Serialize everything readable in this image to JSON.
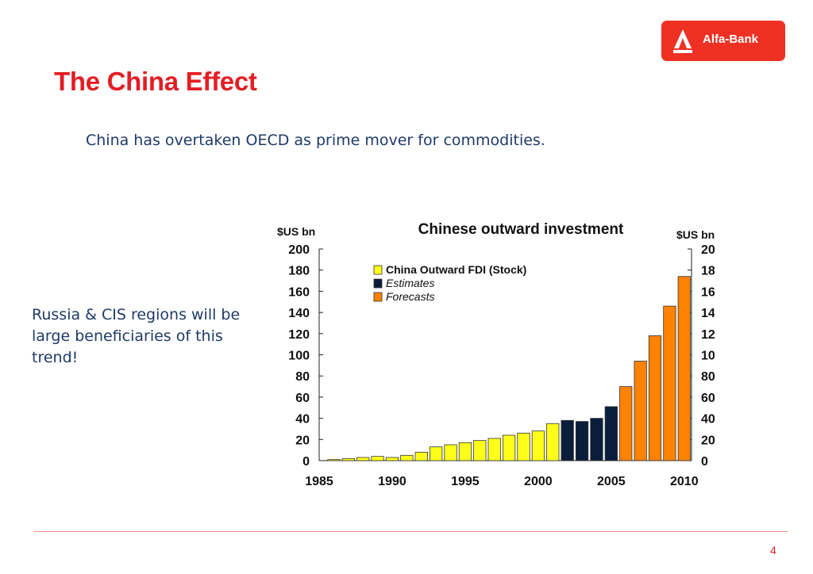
{
  "brand": {
    "logo_text": "Alfa-Bank"
  },
  "slide": {
    "title": "The China Effect",
    "subtitle": "China has overtaken OECD as prime mover for commodities.",
    "side_note": "Russia & CIS regions will be large beneficiaries of this trend!",
    "page_number": "4"
  },
  "colors": {
    "brand_red": "#e31e24",
    "text_blue": "#1f3a68",
    "stock_yellow": "#ffff1a",
    "estimates_navy": "#0a1e3c",
    "forecasts_orange": "#ff8200"
  },
  "chart_data": {
    "type": "bar",
    "title": "Chinese outward investment",
    "ylabel_left": "$US bn",
    "ylabel_right": "$US bn",
    "ylim": [
      0,
      200
    ],
    "yticks": [
      0,
      20,
      40,
      60,
      80,
      100,
      120,
      140,
      160,
      180,
      200
    ],
    "xticks": [
      1985,
      1990,
      1995,
      2000,
      2005,
      2010
    ],
    "legend_position": "top-left",
    "series": [
      {
        "name": "China Outward FDI (Stock)",
        "color": "#ffff1a",
        "x": [
          1986,
          1987,
          1988,
          1989,
          1990,
          1991,
          1992,
          1993,
          1994,
          1995,
          1996,
          1997,
          1998,
          1999,
          2000,
          2001
        ],
        "values": [
          1,
          2,
          3,
          4,
          3,
          5,
          8,
          13,
          15,
          17,
          19,
          21,
          24,
          26,
          28,
          35
        ]
      },
      {
        "name": "Estimates",
        "color": "#0a1e3c",
        "x": [
          2002,
          2003,
          2004,
          2005
        ],
        "values": [
          38,
          37,
          40,
          51
        ]
      },
      {
        "name": "Forecasts",
        "color": "#ff8200",
        "x": [
          2006,
          2007,
          2008,
          2009,
          2010
        ],
        "values": [
          70,
          94,
          118,
          146,
          174
        ]
      }
    ]
  }
}
